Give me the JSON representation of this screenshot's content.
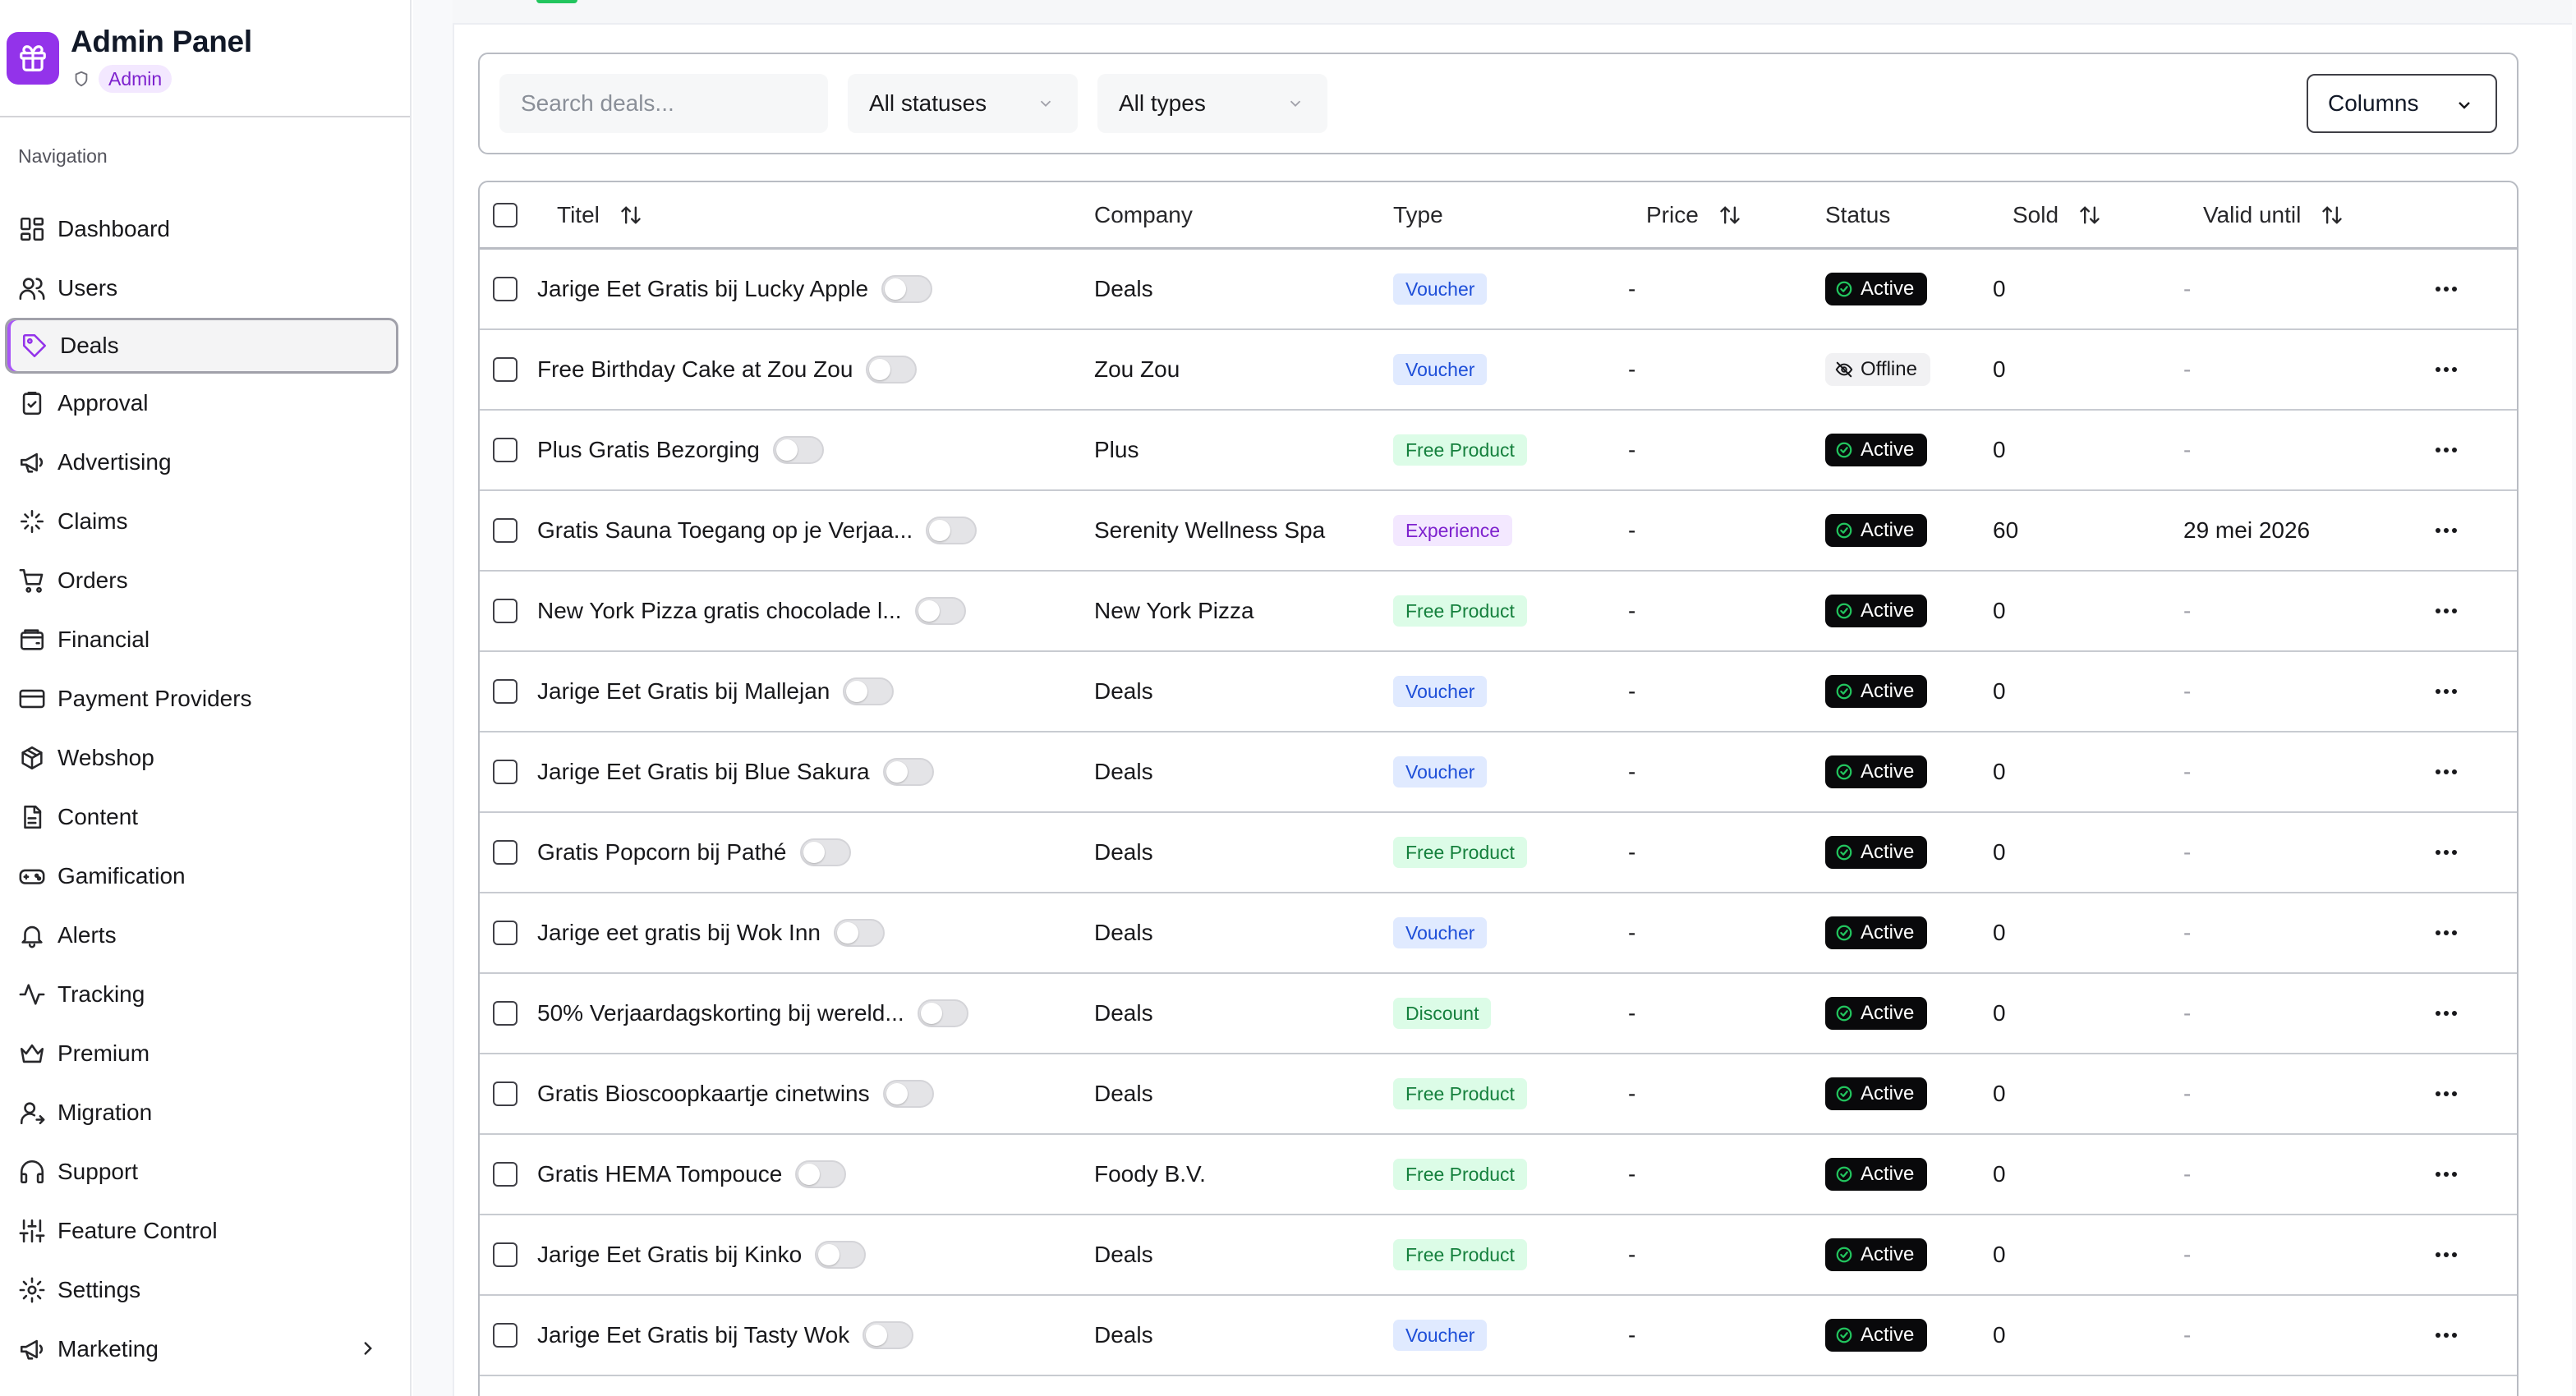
{
  "app": {
    "title": "Admin Panel",
    "role": "Admin",
    "accent": "#9333ea"
  },
  "sidebar": {
    "heading": "Navigation",
    "items": [
      {
        "label": "Dashboard",
        "icon": "dashboard-icon"
      },
      {
        "label": "Users",
        "icon": "users-icon"
      },
      {
        "label": "Deals",
        "icon": "tag-icon",
        "active": true
      },
      {
        "label": "Approval",
        "icon": "clipboard-check-icon"
      },
      {
        "label": "Advertising",
        "icon": "megaphone-icon"
      },
      {
        "label": "Claims",
        "icon": "sparkle-icon"
      },
      {
        "label": "Orders",
        "icon": "cart-icon"
      },
      {
        "label": "Financial",
        "icon": "wallet-icon"
      },
      {
        "label": "Payment Providers",
        "icon": "credit-card-icon"
      },
      {
        "label": "Webshop",
        "icon": "package-icon"
      },
      {
        "label": "Content",
        "icon": "document-icon"
      },
      {
        "label": "Gamification",
        "icon": "gamepad-icon"
      },
      {
        "label": "Alerts",
        "icon": "bell-icon"
      },
      {
        "label": "Tracking",
        "icon": "activity-icon"
      },
      {
        "label": "Premium",
        "icon": "crown-icon"
      },
      {
        "label": "Migration",
        "icon": "user-move-icon"
      },
      {
        "label": "Support",
        "icon": "headphones-icon"
      },
      {
        "label": "Feature Control",
        "icon": "sliders-icon"
      },
      {
        "label": "Settings",
        "icon": "gear-icon"
      },
      {
        "label": "Marketing",
        "icon": "megaphone-icon",
        "expandable": true
      }
    ]
  },
  "filters": {
    "search_placeholder": "Search deals...",
    "search_value": "",
    "status_selected": "All statuses",
    "type_selected": "All types",
    "columns_label": "Columns"
  },
  "table": {
    "columns": {
      "title": "Titel",
      "company": "Company",
      "type": "Type",
      "price": "Price",
      "status": "Status",
      "sold": "Sold",
      "valid_until": "Valid until"
    },
    "rows": [
      {
        "title": "Jarige Eet Gratis bij Lucky Apple",
        "company": "Deals",
        "type": "Voucher",
        "price": "-",
        "status": "Active",
        "sold": "0",
        "valid_until": "-"
      },
      {
        "title": "Free Birthday Cake at Zou Zou",
        "company": "Zou Zou",
        "type": "Voucher",
        "price": "-",
        "status": "Offline",
        "sold": "0",
        "valid_until": "-"
      },
      {
        "title": "Plus Gratis Bezorging",
        "company": "Plus",
        "type": "Free Product",
        "price": "-",
        "status": "Active",
        "sold": "0",
        "valid_until": "-"
      },
      {
        "title": "Gratis Sauna Toegang op je Verjaa...",
        "company": "Serenity Wellness Spa",
        "type": "Experience",
        "price": "-",
        "status": "Active",
        "sold": "60",
        "valid_until": "29 mei 2026"
      },
      {
        "title": "New York Pizza gratis chocolade l...",
        "company": "New York Pizza",
        "type": "Free Product",
        "price": "-",
        "status": "Active",
        "sold": "0",
        "valid_until": "-"
      },
      {
        "title": "Jarige Eet Gratis bij Mallejan",
        "company": "Deals",
        "type": "Voucher",
        "price": "-",
        "status": "Active",
        "sold": "0",
        "valid_until": "-"
      },
      {
        "title": "Jarige Eet Gratis bij Blue Sakura",
        "company": "Deals",
        "type": "Voucher",
        "price": "-",
        "status": "Active",
        "sold": "0",
        "valid_until": "-"
      },
      {
        "title": "Gratis Popcorn bij Pathé",
        "company": "Deals",
        "type": "Free Product",
        "price": "-",
        "status": "Active",
        "sold": "0",
        "valid_until": "-"
      },
      {
        "title": "Jarige eet gratis bij Wok Inn",
        "company": "Deals",
        "type": "Voucher",
        "price": "-",
        "status": "Active",
        "sold": "0",
        "valid_until": "-"
      },
      {
        "title": "50% Verjaardagskorting bij wereld...",
        "company": "Deals",
        "type": "Discount",
        "price": "-",
        "status": "Active",
        "sold": "0",
        "valid_until": "-"
      },
      {
        "title": "Gratis Bioscoopkaartje cinetwins",
        "company": "Deals",
        "type": "Free Product",
        "price": "-",
        "status": "Active",
        "sold": "0",
        "valid_until": "-"
      },
      {
        "title": "Gratis HEMA Tompouce",
        "company": "Foody B.V.",
        "type": "Free Product",
        "price": "-",
        "status": "Active",
        "sold": "0",
        "valid_until": "-"
      },
      {
        "title": "Jarige Eet Gratis bij Kinko",
        "company": "Deals",
        "type": "Free Product",
        "price": "-",
        "status": "Active",
        "sold": "0",
        "valid_until": "-"
      },
      {
        "title": "Jarige Eet Gratis bij Tasty Wok",
        "company": "Deals",
        "type": "Voucher",
        "price": "-",
        "status": "Active",
        "sold": "0",
        "valid_until": "-"
      },
      {
        "title": "",
        "company": "",
        "type": "",
        "price": "",
        "status": "",
        "sold": "",
        "valid_until": ""
      }
    ]
  }
}
